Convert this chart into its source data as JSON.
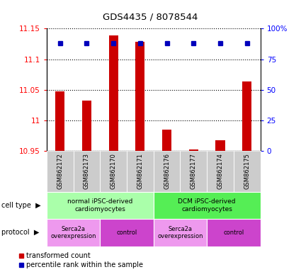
{
  "title": "GDS4435 / 8078544",
  "samples": [
    "GSM862172",
    "GSM862173",
    "GSM862170",
    "GSM862171",
    "GSM862176",
    "GSM862177",
    "GSM862174",
    "GSM862175"
  ],
  "bar_values": [
    11.047,
    11.032,
    11.139,
    11.128,
    10.985,
    10.952,
    10.967,
    11.063
  ],
  "percentile_values": [
    88,
    88,
    88,
    88,
    88,
    88,
    88,
    88
  ],
  "ylim_left": [
    10.95,
    11.15
  ],
  "ylim_right": [
    0,
    100
  ],
  "yticks_left": [
    10.95,
    11.0,
    11.05,
    11.1,
    11.15
  ],
  "ytick_labels_left": [
    "10.95",
    "11",
    "11.05",
    "11.1",
    "11.15"
  ],
  "yticks_right": [
    0,
    25,
    50,
    75,
    100
  ],
  "ytick_labels_right": [
    "0",
    "25",
    "50",
    "75",
    "100%"
  ],
  "bar_color": "#cc0000",
  "dot_color": "#0000bb",
  "bar_bottom": 10.95,
  "cell_type_groups": [
    {
      "label": "normal iPSC-derived\ncardiomyocytes",
      "start": 0,
      "end": 4,
      "color": "#aaffaa"
    },
    {
      "label": "DCM iPSC-derived\ncardiomyocytes",
      "start": 4,
      "end": 8,
      "color": "#55ee55"
    }
  ],
  "protocol_groups": [
    {
      "label": "Serca2a\noverexpression",
      "start": 0,
      "end": 2,
      "color": "#ee99ee"
    },
    {
      "label": "control",
      "start": 2,
      "end": 4,
      "color": "#cc44cc"
    },
    {
      "label": "Serca2a\noverexpression",
      "start": 4,
      "end": 6,
      "color": "#ee99ee"
    },
    {
      "label": "control",
      "start": 6,
      "end": 8,
      "color": "#cc44cc"
    }
  ],
  "legend_red_label": "transformed count",
  "legend_blue_label": "percentile rank within the sample",
  "cell_type_label": "cell type",
  "protocol_label": "protocol"
}
